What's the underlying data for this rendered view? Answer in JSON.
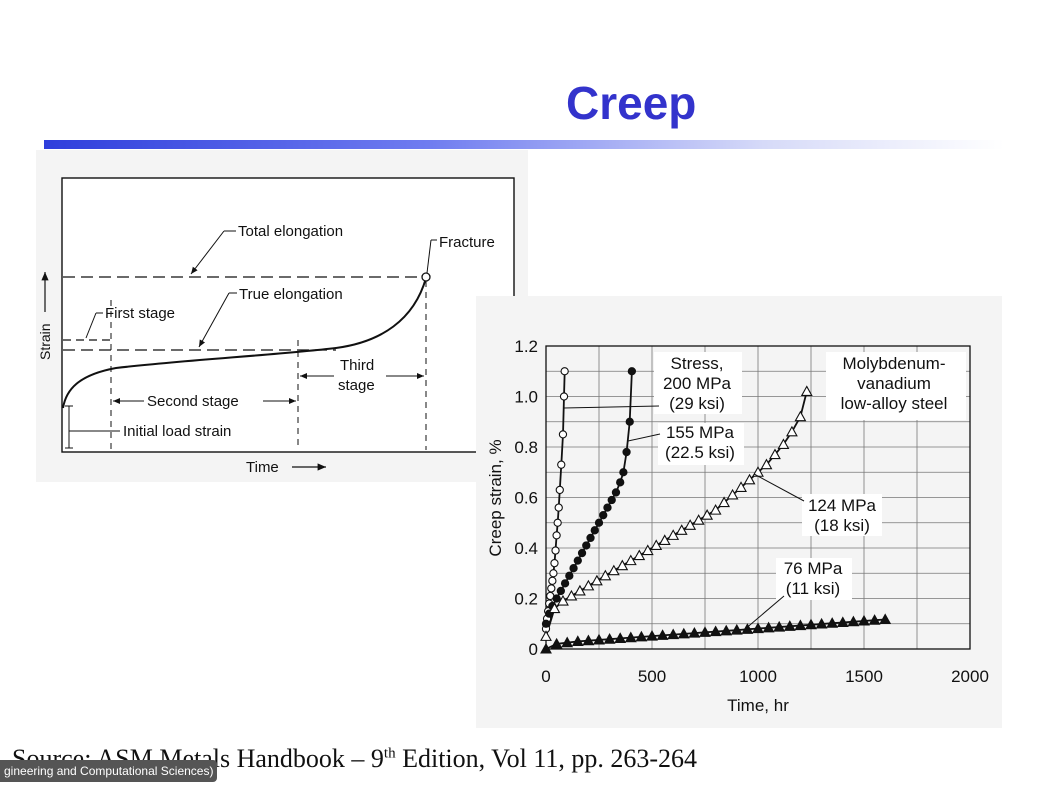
{
  "slide": {
    "title": "Creep",
    "source_prefix": "Source:  ASM Metals Handbook – 9",
    "source_sup": "th",
    "source_suffix": " Edition, Vol 11, pp. 263-264",
    "watermark": "gineering and Computational Sciences)"
  },
  "left_chart": {
    "ylabel": "Strain",
    "xlabel": "Time",
    "annotations": {
      "total_elongation": "Total elongation",
      "fracture": "Fracture",
      "true_elongation": "True elongation",
      "first_stage": "First stage",
      "third_stage_line1": "Third",
      "third_stage_line2": "stage",
      "second_stage": "Second stage",
      "initial_load_strain": "Initial load strain"
    }
  },
  "chart_data": {
    "type": "scatter",
    "xlabel": "Time, hr",
    "ylabel": "Creep strain, %",
    "xlim": [
      0,
      2000
    ],
    "ylim": [
      0,
      1.2
    ],
    "x_ticks": [
      "0",
      "500",
      "1000",
      "1500",
      "2000"
    ],
    "y_ticks": [
      "0",
      "0.2",
      "0.4",
      "0.6",
      "0.8",
      "1.0",
      "1.2"
    ],
    "grid": true,
    "legend_title_lines": [
      "Molybdenum-",
      "vanadium",
      "low-alloy steel"
    ],
    "series": [
      {
        "name": "Stress, 200 MPa (29 ksi)",
        "label_lines": [
          "Stress,",
          "200 MPa",
          "(29 ksi)"
        ],
        "marker": "open-circle",
        "x": [
          0,
          5,
          10,
          15,
          20,
          25,
          30,
          35,
          40,
          45,
          50,
          55,
          60,
          65,
          72,
          80,
          85,
          88
        ],
        "y": [
          0.08,
          0.12,
          0.15,
          0.18,
          0.21,
          0.24,
          0.27,
          0.3,
          0.34,
          0.39,
          0.45,
          0.5,
          0.56,
          0.63,
          0.73,
          0.85,
          1.0,
          1.1
        ]
      },
      {
        "name": "155 MPa (22.5 ksi)",
        "label_lines": [
          "155 MPa",
          "(22.5 ksi)"
        ],
        "marker": "filled-circle",
        "x": [
          0,
          15,
          30,
          50,
          70,
          90,
          110,
          130,
          150,
          170,
          190,
          210,
          230,
          250,
          270,
          290,
          310,
          330,
          350,
          365,
          380,
          395,
          405
        ],
        "y": [
          0.1,
          0.14,
          0.17,
          0.2,
          0.23,
          0.26,
          0.29,
          0.32,
          0.35,
          0.38,
          0.41,
          0.44,
          0.47,
          0.5,
          0.53,
          0.56,
          0.59,
          0.62,
          0.66,
          0.7,
          0.78,
          0.9,
          1.1
        ]
      },
      {
        "name": "124 MPa (18 ksi)",
        "label_lines": [
          "124 MPa",
          "(18 ksi)"
        ],
        "marker": "open-triangle",
        "x": [
          0,
          40,
          80,
          120,
          160,
          200,
          240,
          280,
          320,
          360,
          400,
          440,
          480,
          520,
          560,
          600,
          640,
          680,
          720,
          760,
          800,
          840,
          880,
          920,
          960,
          1000,
          1040,
          1080,
          1120,
          1160,
          1200,
          1230
        ],
        "y": [
          0.05,
          0.16,
          0.19,
          0.21,
          0.23,
          0.25,
          0.27,
          0.29,
          0.31,
          0.33,
          0.35,
          0.37,
          0.39,
          0.41,
          0.43,
          0.45,
          0.47,
          0.49,
          0.51,
          0.53,
          0.55,
          0.58,
          0.61,
          0.64,
          0.67,
          0.7,
          0.73,
          0.77,
          0.81,
          0.86,
          0.92,
          1.02
        ]
      },
      {
        "name": "76 MPa (11 ksi)",
        "label_lines": [
          "76 MPa",
          "(11 ksi)"
        ],
        "marker": "filled-triangle",
        "x": [
          0,
          50,
          100,
          150,
          200,
          250,
          300,
          350,
          400,
          450,
          500,
          550,
          600,
          650,
          700,
          750,
          800,
          850,
          900,
          950,
          1000,
          1050,
          1100,
          1150,
          1200,
          1250,
          1300,
          1350,
          1400,
          1450,
          1500,
          1550,
          1600
        ],
        "y": [
          0.0,
          0.02,
          0.025,
          0.03,
          0.033,
          0.036,
          0.039,
          0.042,
          0.045,
          0.048,
          0.051,
          0.054,
          0.057,
          0.06,
          0.063,
          0.066,
          0.069,
          0.072,
          0.075,
          0.078,
          0.081,
          0.084,
          0.087,
          0.09,
          0.093,
          0.096,
          0.099,
          0.102,
          0.105,
          0.108,
          0.111,
          0.114,
          0.117
        ]
      }
    ]
  }
}
